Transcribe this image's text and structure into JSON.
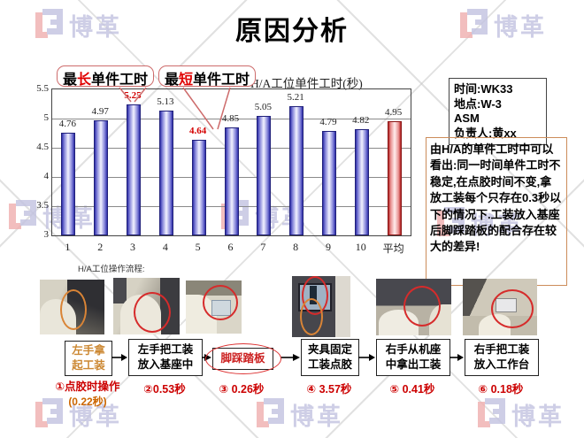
{
  "slide": {
    "title": "原因分析"
  },
  "watermark": {
    "brand": "博革"
  },
  "chart_data": {
    "type": "bar",
    "title": "H/A工位单件工时(秒)",
    "categories": [
      "1",
      "2",
      "3",
      "4",
      "5",
      "6",
      "7",
      "8",
      "9",
      "10",
      "平均"
    ],
    "values": [
      4.76,
      4.97,
      5.25,
      5.13,
      4.64,
      4.85,
      5.05,
      5.21,
      4.79,
      4.82,
      4.95
    ],
    "value_labels": [
      "4.76",
      "4.97",
      "5.25",
      "5.13",
      "4.64",
      "4.85",
      "5.05",
      "5.21",
      "4.79",
      "4.82",
      "4.95"
    ],
    "red_label_indexes": [
      2,
      4
    ],
    "average_bar_index": 10,
    "ylim": [
      3,
      5.5
    ],
    "yticks": [
      "5.5",
      "5",
      "4.5",
      "4",
      "3.5",
      "3"
    ],
    "grid": true,
    "legend": "none",
    "bar_color": "#2e2ea8",
    "average_bar_color": "#b02020",
    "annotations": [
      {
        "label": "最长单件工时",
        "accent_char": "长",
        "target_value": 5.25,
        "target_category": "3"
      },
      {
        "label": "最短单件工时",
        "accent_char": "短",
        "target_value": 4.64,
        "target_category": "5"
      }
    ]
  },
  "callouts": {
    "longest": {
      "pre": "最",
      "accent": "长",
      "post": "单件工时"
    },
    "shortest": {
      "pre": "最",
      "accent": "短",
      "post": "单件工时"
    }
  },
  "info_box": {
    "line1": "时间:WK33",
    "line2": "地点:W-3",
    "line3": "ASM",
    "line4": "负责人:黄xx"
  },
  "analysis_box": {
    "text": "由H/A的单件工时中可以看出:同一时间单件工时不稳定,在点胶时间不变,拿放工装每个只存在0.3秒以下的情况下.工装放入基座后脚踩踏板的配合存在较大的差异!"
  },
  "process": {
    "heading": "H/A工位操作流程:",
    "steps": [
      {
        "line1": "左手拿",
        "line2": "起工装",
        "time1": "①点胶时操作",
        "time2": "(0.22秒)"
      },
      {
        "line1": "左手把工装",
        "line2": "放入基座中",
        "time1": "②0.53秒"
      },
      {
        "line1": "脚踩踏板",
        "time1": "③ 0.26秒"
      },
      {
        "line1": "夹具固定",
        "line2": "工装点胶",
        "time1": "④ 3.57秒"
      },
      {
        "line1": "右手从机座",
        "line2": "中拿出工装",
        "time1": "⑤ 0.41秒"
      },
      {
        "line1": "右手把工装",
        "line2": "放入工作台",
        "time1": "⑥ 0.18秒"
      }
    ]
  },
  "colors": {
    "accent_red": "#d40000",
    "callout_border": "#cd6b6b",
    "analysis_border": "#cc8c5a",
    "step_orange": "#cc8833",
    "watermark_lavender": "#c3c3e0",
    "watermark_pink": "#f0aeae"
  }
}
